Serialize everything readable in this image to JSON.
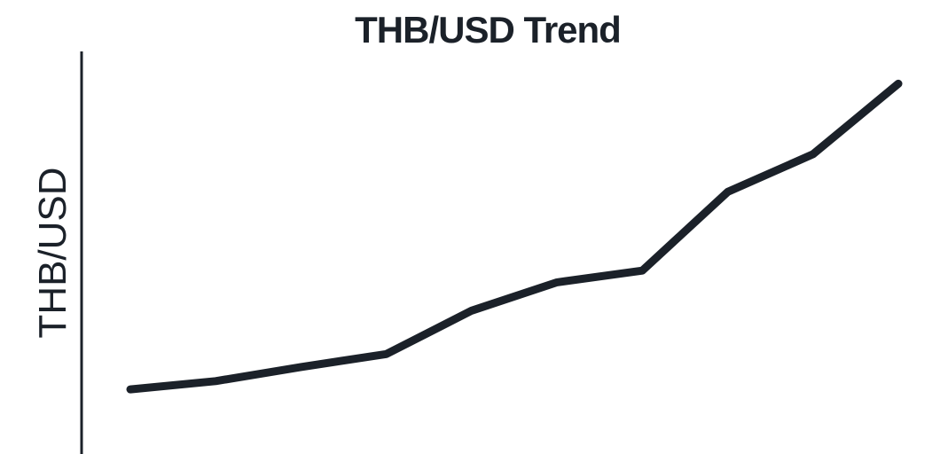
{
  "chart_data": {
    "type": "line",
    "title": "THB/USD Trend",
    "xlabel": "",
    "ylabel": "THB/USD",
    "x": [
      1,
      2,
      3,
      4,
      5,
      6,
      7,
      8,
      9,
      10
    ],
    "series": [
      {
        "values": [
          10.5,
          11.2,
          12.4,
          13.5,
          17.2,
          19.6,
          20.6,
          27.3,
          30.5,
          36.5
        ]
      }
    ],
    "ylim": [
      5,
      40
    ],
    "grid": false,
    "legend": "none",
    "colors": {
      "line": "#1b2129",
      "axis": "#1b2129",
      "text": "#1b2129",
      "background": "#ffffff"
    }
  }
}
